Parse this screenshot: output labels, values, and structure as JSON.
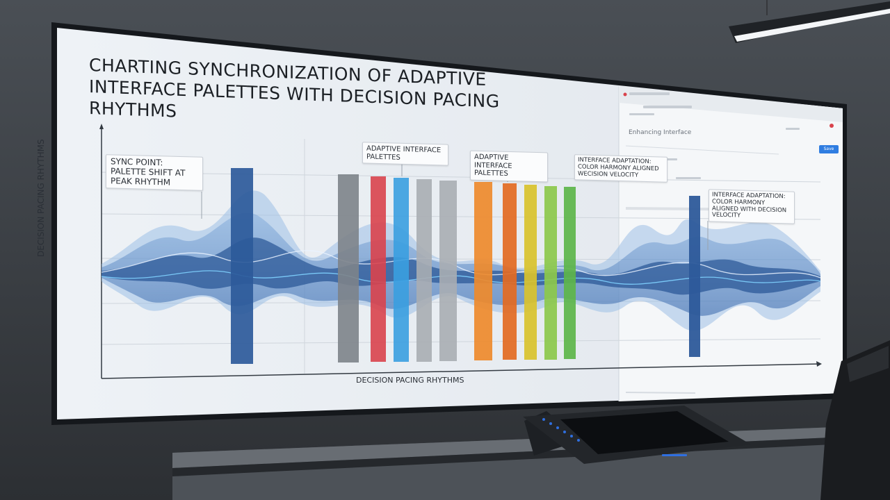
{
  "presentation": {
    "title": "CHARTING SYNCHRONIZATION OF ADAPTIVE INTERFACE PALETTES WITH DECISION PACING RHYTHMS",
    "y_axis_label": "DECISION PACING RHYTHMS",
    "x_axis_label": "DECISION PACING RHYTHMS",
    "callouts": {
      "sync_point": "SYNC POINT: PALETTE SHIFT AT PEAK RHYTHM",
      "adaptive_1": "ADAPTIVE INTERFACE PALETTES",
      "adaptive_2": "ADAPTIVE INTERFACE PALETTES",
      "adaptation_1": "INTERFACE ADAPTATION: COLOR HARMONY ALIGNED WECISION VELOCITY",
      "adaptation_2": "INTERFACE ADAPTATION: COLOR HARMONY ALIGNED WITH DECISION VELOCITY"
    },
    "browser_panel": {
      "heading": "Enhancing Interface",
      "button": "Save"
    }
  },
  "colors": {
    "wave_blue": "#2f6fb8",
    "bar_navy": "#2d5a9a",
    "bar_gray": "#7d838a",
    "bar_red": "#d9434c",
    "bar_sky": "#3a9ee0",
    "bar_silver": "#a8adb3",
    "bar_orange": "#ee8a2c",
    "bar_amber": "#e36a22",
    "bar_yellow": "#d9c22c",
    "bar_lime": "#8cc84b",
    "bar_green": "#5db54a"
  }
}
